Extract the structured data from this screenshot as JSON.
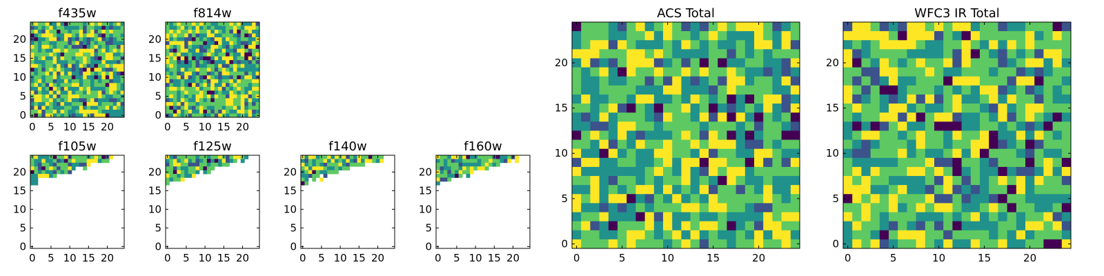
{
  "colormap": [
    "#440154",
    "#3b528b",
    "#21918c",
    "#5ec962",
    "#fde725"
  ],
  "chart_data": [
    {
      "id": "f435w",
      "type": "heatmap",
      "title": "f435w",
      "grid_size": 25,
      "xlim": [
        0,
        24
      ],
      "ylim": [
        0,
        24
      ],
      "xticks": [
        "0",
        "5",
        "10",
        "15",
        "20"
      ],
      "yticks": [
        "0",
        "5",
        "10",
        "15",
        "20"
      ],
      "coverage": "full",
      "grid": false
    },
    {
      "id": "f814w",
      "type": "heatmap",
      "title": "f814w",
      "grid_size": 25,
      "xlim": [
        0,
        24
      ],
      "ylim": [
        0,
        24
      ],
      "xticks": [
        "0",
        "5",
        "10",
        "15",
        "20"
      ],
      "yticks": [
        "0",
        "5",
        "10",
        "15",
        "20"
      ],
      "coverage": "full",
      "grid": false
    },
    {
      "id": "f105w",
      "type": "heatmap",
      "title": "f105w",
      "grid_size": 25,
      "xlim": [
        0,
        24
      ],
      "ylim": [
        0,
        24
      ],
      "xticks": [
        "0",
        "5",
        "10",
        "15",
        "20"
      ],
      "yticks": [
        "0",
        "5",
        "10",
        "15",
        "20"
      ],
      "coverage": "top-left wedge",
      "grid": false
    },
    {
      "id": "f125w",
      "type": "heatmap",
      "title": "f125w",
      "grid_size": 25,
      "xlim": [
        0,
        24
      ],
      "ylim": [
        0,
        24
      ],
      "xticks": [
        "0",
        "5",
        "10",
        "15",
        "20"
      ],
      "yticks": [
        "0",
        "5",
        "10",
        "15",
        "20"
      ],
      "coverage": "top-left wedge",
      "grid": false
    },
    {
      "id": "f140w",
      "type": "heatmap",
      "title": "f140w",
      "grid_size": 25,
      "xlim": [
        0,
        24
      ],
      "ylim": [
        0,
        24
      ],
      "xticks": [
        "0",
        "5",
        "10",
        "15",
        "20"
      ],
      "yticks": [
        "0",
        "5",
        "10",
        "15",
        "20"
      ],
      "coverage": "top-left wedge",
      "grid": false
    },
    {
      "id": "f160w",
      "type": "heatmap",
      "title": "f160w",
      "grid_size": 25,
      "xlim": [
        0,
        24
      ],
      "ylim": [
        0,
        24
      ],
      "xticks": [
        "0",
        "5",
        "10",
        "15",
        "20"
      ],
      "yticks": [
        "0",
        "5",
        "10",
        "15",
        "20"
      ],
      "coverage": "top-left wedge",
      "grid": false
    },
    {
      "id": "acs-total",
      "type": "heatmap",
      "title": "ACS Total",
      "grid_size": 25,
      "xlim": [
        0,
        24
      ],
      "ylim": [
        0,
        24
      ],
      "xticks": [
        "0",
        "5",
        "10",
        "15",
        "20"
      ],
      "yticks": [
        "0",
        "5",
        "10",
        "15",
        "20"
      ],
      "coverage": "full",
      "grid": false
    },
    {
      "id": "wfc3-ir-total",
      "type": "heatmap",
      "title": "WFC3 IR Total",
      "grid_size": 25,
      "xlim": [
        0,
        24
      ],
      "ylim": [
        0,
        24
      ],
      "xticks": [
        "0",
        "5",
        "10",
        "15",
        "20"
      ],
      "yticks": [
        "0",
        "5",
        "10",
        "15",
        "20"
      ],
      "coverage": "full",
      "grid": false
    }
  ]
}
